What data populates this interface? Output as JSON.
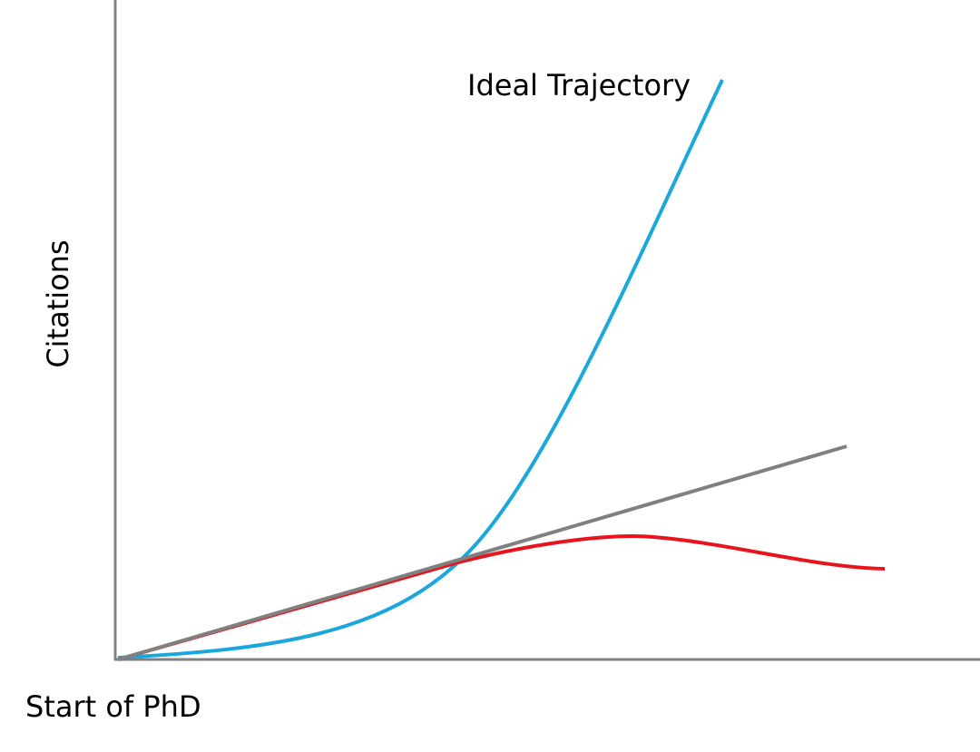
{
  "annotation": "Ideal Trajectory",
  "y_label": "Citations",
  "x_label": "Start of PhD"
}
